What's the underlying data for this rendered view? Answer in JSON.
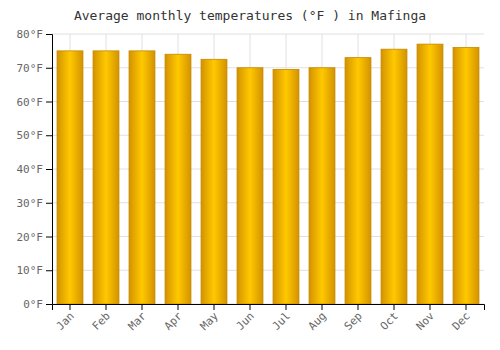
{
  "chart_data": {
    "type": "bar",
    "title": "Average monthly temperatures (°F ) in Mafinga",
    "categories": [
      "Jan",
      "Feb",
      "Mar",
      "Apr",
      "May",
      "Jun",
      "Jul",
      "Aug",
      "Sep",
      "Oct",
      "Nov",
      "Dec"
    ],
    "values": [
      75.0,
      75.0,
      75.0,
      74.0,
      72.5,
      70.0,
      69.5,
      70.0,
      73.0,
      75.5,
      77.0,
      76.0
    ],
    "color": "#F5A800",
    "ylim": [
      0,
      80
    ],
    "yticks": [
      {
        "value": 0,
        "label": "0°F"
      },
      {
        "value": 10,
        "label": "10°F"
      },
      {
        "value": 20,
        "label": "20°F"
      },
      {
        "value": 30,
        "label": "30°F"
      },
      {
        "value": 40,
        "label": "40°F"
      },
      {
        "value": 50,
        "label": "50°F"
      },
      {
        "value": 60,
        "label": "60°F"
      },
      {
        "value": 70,
        "label": "70°F"
      },
      {
        "value": 80,
        "label": "80°F"
      }
    ],
    "grid": true
  }
}
